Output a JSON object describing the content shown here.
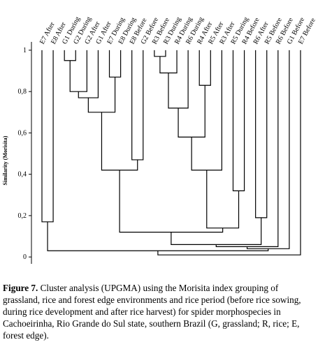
{
  "chart_data": {
    "type": "dendrogram",
    "ylabel": "Similarity (Morisita)",
    "leaves": [
      "E7 After",
      "E8 After",
      "G1 During",
      "G2 During",
      "G2 After",
      "G1 After",
      "E7 During",
      "E8 During",
      "E8 Before",
      "G2 Before",
      "R3 Before",
      "R3 During",
      "R4 During",
      "R6 During",
      "R4 After",
      "R5 After",
      "R3 After",
      "R5 During",
      "R4 Before",
      "R6 After",
      "R5 Before",
      "R6 Before",
      "G1 Before",
      "E7 Before"
    ],
    "merges": [
      {
        "children": [
          "L0",
          "L1"
        ],
        "height": 0.17
      },
      {
        "children": [
          "L2",
          "L3"
        ],
        "height": 0.95
      },
      {
        "children": [
          "M1",
          "L4"
        ],
        "height": 0.8
      },
      {
        "children": [
          "M2",
          "L5"
        ],
        "height": 0.77
      },
      {
        "children": [
          "L6",
          "L7"
        ],
        "height": 0.87
      },
      {
        "children": [
          "M3",
          "M4"
        ],
        "height": 0.7
      },
      {
        "children": [
          "L8",
          "L9"
        ],
        "height": 0.47
      },
      {
        "children": [
          "M5",
          "M6"
        ],
        "height": 0.42
      },
      {
        "children": [
          "L10",
          "L11"
        ],
        "height": 0.97
      },
      {
        "children": [
          "M8",
          "L12"
        ],
        "height": 0.89
      },
      {
        "children": [
          "M9",
          "L13"
        ],
        "height": 0.72
      },
      {
        "children": [
          "L14",
          "L15"
        ],
        "height": 0.83
      },
      {
        "children": [
          "M10",
          "M11"
        ],
        "height": 0.58
      },
      {
        "children": [
          "M12",
          "L16"
        ],
        "height": 0.42
      },
      {
        "children": [
          "L17",
          "L18"
        ],
        "height": 0.32
      },
      {
        "children": [
          "M13",
          "M14"
        ],
        "height": 0.14
      },
      {
        "children": [
          "M7",
          "M15"
        ],
        "height": 0.12
      },
      {
        "children": [
          "L19",
          "L20"
        ],
        "height": 0.19
      },
      {
        "children": [
          "M16",
          "M17"
        ],
        "height": 0.06
      },
      {
        "children": [
          "M18",
          "L21"
        ],
        "height": 0.05
      },
      {
        "children": [
          "M19",
          "L22"
        ],
        "height": 0.04
      },
      {
        "children": [
          "M0",
          "M20"
        ],
        "height": 0.03
      },
      {
        "children": [
          "M21",
          "L23"
        ],
        "height": 0.01
      }
    ],
    "ylim": [
      -0.04,
      1.02
    ],
    "yticks": [
      0,
      {
        "value": 0.2,
        "label": "0,2"
      },
      {
        "value": 0.4,
        "label": "0,4"
      },
      {
        "value": 0.6,
        "label": "0,6"
      },
      {
        "value": 0.8,
        "label": "0,8"
      },
      1
    ]
  },
  "caption": {
    "label": "Figure 7.",
    "text": "Cluster analysis (UPGMA) using the Morisita index grouping of grassland, rice and forest edge environments and rice period (before rice sowing, during rice development and after rice harvest) for spider morphospecies in Cachoeirinha, Rio Grande do Sul state, southern Brazil (G, grassland; R, rice; E, forest edge)."
  }
}
